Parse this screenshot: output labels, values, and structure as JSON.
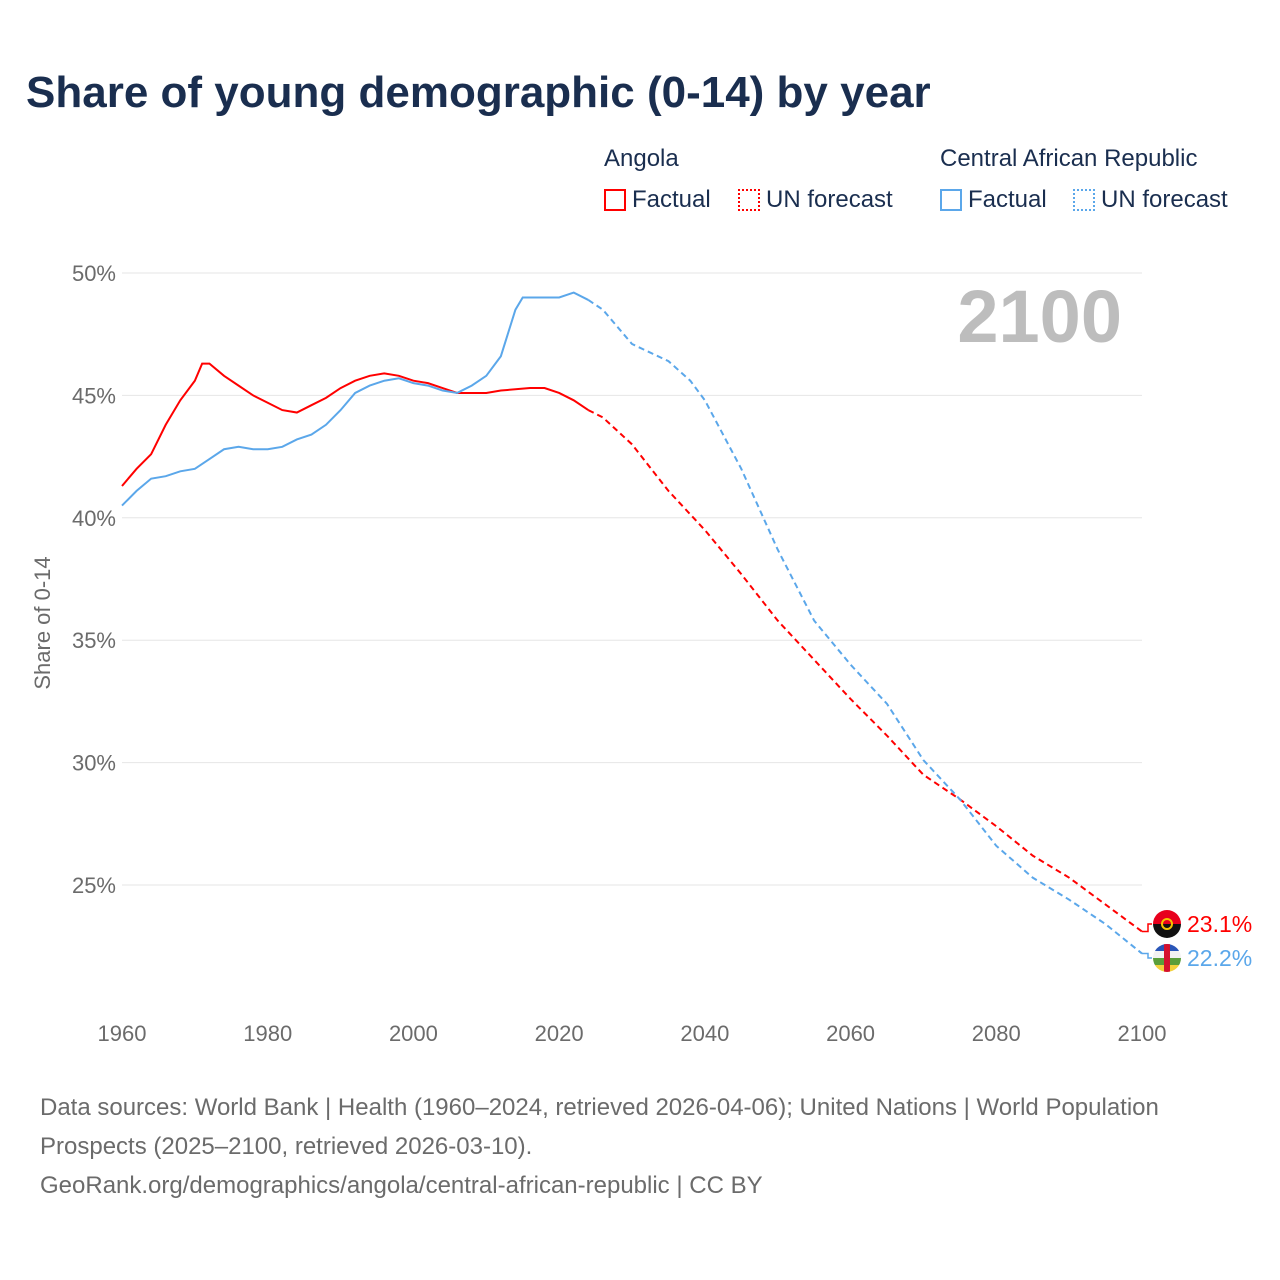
{
  "chart_data": {
    "type": "line",
    "title": "Share of young demographic (0-14) by year",
    "ylabel": "Share of 0-14",
    "xlabel": "",
    "xlim": [
      1960,
      2100
    ],
    "ylim": [
      20,
      50
    ],
    "x_ticks": [
      1960,
      1980,
      2000,
      2020,
      2040,
      2060,
      2080,
      2100
    ],
    "y_ticks": [
      25,
      30,
      35,
      40,
      45,
      50
    ],
    "y_tick_labels": [
      "25%",
      "30%",
      "35%",
      "40%",
      "45%",
      "50%"
    ],
    "x_tick_labels": [
      "1960",
      "1980",
      "2000",
      "2020",
      "2040",
      "2060",
      "2080",
      "2100"
    ],
    "grid": true,
    "year_overlay": "2100",
    "forecast_start": 2024,
    "series": [
      {
        "name": "Angola",
        "color": "#ff0000",
        "end_label": "23.1%",
        "x": [
          1960,
          1962,
          1964,
          1966,
          1968,
          1970,
          1971,
          1972,
          1974,
          1976,
          1978,
          1980,
          1982,
          1984,
          1986,
          1988,
          1990,
          1992,
          1994,
          1996,
          1998,
          2000,
          2002,
          2004,
          2006,
          2010,
          2012,
          2016,
          2018,
          2020,
          2022,
          2024,
          2026,
          2030,
          2035,
          2040,
          2045,
          2050,
          2055,
          2060,
          2065,
          2070,
          2075,
          2080,
          2085,
          2090,
          2095,
          2100
        ],
        "y": [
          41.3,
          42.0,
          42.6,
          43.8,
          44.8,
          45.6,
          46.3,
          46.3,
          45.8,
          45.4,
          45.0,
          44.7,
          44.4,
          44.3,
          44.6,
          44.9,
          45.3,
          45.6,
          45.8,
          45.9,
          45.8,
          45.6,
          45.5,
          45.3,
          45.1,
          45.1,
          45.2,
          45.3,
          45.3,
          45.1,
          44.8,
          44.4,
          44.1,
          43.0,
          41.1,
          39.5,
          37.7,
          35.8,
          34.2,
          32.6,
          31.1,
          29.5,
          28.5,
          27.4,
          26.2,
          25.3,
          24.2,
          23.1
        ]
      },
      {
        "name": "Central African Republic",
        "color": "#5ba7ea",
        "end_label": "22.2%",
        "x": [
          1960,
          1962,
          1964,
          1966,
          1968,
          1970,
          1972,
          1974,
          1976,
          1978,
          1980,
          1982,
          1984,
          1986,
          1988,
          1990,
          1992,
          1994,
          1996,
          1998,
          2000,
          2002,
          2004,
          2006,
          2008,
          2010,
          2012,
          2014,
          2015,
          2020,
          2022,
          2024,
          2026,
          2030,
          2035,
          2038,
          2040,
          2045,
          2050,
          2055,
          2060,
          2065,
          2070,
          2075,
          2080,
          2085,
          2090,
          2095,
          2100
        ],
        "y": [
          40.5,
          41.1,
          41.6,
          41.7,
          41.9,
          42.0,
          42.4,
          42.8,
          42.9,
          42.8,
          42.8,
          42.9,
          43.2,
          43.4,
          43.8,
          44.4,
          45.1,
          45.4,
          45.6,
          45.7,
          45.5,
          45.4,
          45.2,
          45.1,
          45.4,
          45.8,
          46.6,
          48.5,
          49.0,
          49.0,
          49.2,
          48.9,
          48.5,
          47.1,
          46.4,
          45.6,
          44.8,
          42.0,
          38.7,
          35.8,
          34.0,
          32.4,
          30.1,
          28.5,
          26.6,
          25.3,
          24.4,
          23.4,
          22.2
        ]
      }
    ]
  },
  "legend": {
    "groups": [
      {
        "title": "Angola",
        "factual": "Factual",
        "forecast": "UN forecast"
      },
      {
        "title": "Central African Republic",
        "factual": "Factual",
        "forecast": "UN forecast"
      }
    ]
  },
  "footer": {
    "sources": "Data sources: World Bank | Health (1960–2024, retrieved 2026-04-06); United Nations | World Population Prospects (2025–2100, retrieved 2026-03-10).",
    "link": "GeoRank.org/demographics/angola/central-african-republic | CC BY"
  }
}
